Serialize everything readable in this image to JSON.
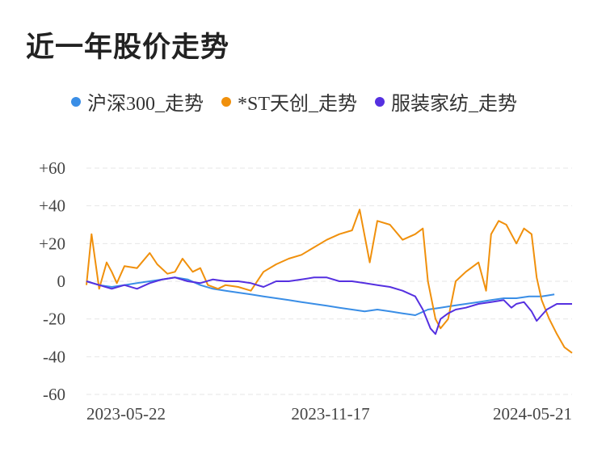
{
  "title": "近一年股价走势",
  "chart_data": {
    "type": "line",
    "title": "近一年股价走势",
    "x_ticks": [
      "2023-05-22",
      "2023-11-17",
      "2024-05-21"
    ],
    "y_ticks": [
      "+60",
      "+40",
      "+20",
      "0",
      "-20",
      "-40",
      "-60"
    ],
    "ylim": [
      -60,
      60
    ],
    "grid": true,
    "legend_position": "top",
    "series": [
      {
        "name": "沪深300_走势",
        "color": "#3a8ee6",
        "points": [
          [
            0,
            0
          ],
          [
            5,
            -2
          ],
          [
            10,
            -3
          ],
          [
            15,
            -2
          ],
          [
            20,
            -1
          ],
          [
            25,
            0
          ],
          [
            30,
            1
          ],
          [
            35,
            2
          ],
          [
            40,
            1
          ],
          [
            45,
            -2
          ],
          [
            50,
            -4
          ],
          [
            55,
            -5
          ],
          [
            60,
            -6
          ],
          [
            65,
            -7
          ],
          [
            70,
            -8
          ],
          [
            75,
            -9
          ],
          [
            80,
            -10
          ],
          [
            85,
            -11
          ],
          [
            90,
            -12
          ],
          [
            95,
            -13
          ],
          [
            100,
            -14
          ],
          [
            105,
            -15
          ],
          [
            110,
            -16
          ],
          [
            115,
            -15
          ],
          [
            120,
            -16
          ],
          [
            125,
            -17
          ],
          [
            130,
            -18
          ],
          [
            135,
            -15
          ],
          [
            140,
            -14
          ],
          [
            145,
            -13
          ],
          [
            150,
            -12
          ],
          [
            155,
            -11
          ],
          [
            160,
            -10
          ],
          [
            165,
            -9
          ],
          [
            170,
            -9
          ],
          [
            175,
            -8
          ],
          [
            180,
            -8
          ],
          [
            185,
            -7
          ]
        ]
      },
      {
        "name": "*ST天创_走势",
        "color": "#f0900c",
        "points": [
          [
            0,
            -2
          ],
          [
            2,
            25
          ],
          [
            5,
            -4
          ],
          [
            8,
            10
          ],
          [
            10,
            5
          ],
          [
            12,
            -1
          ],
          [
            15,
            8
          ],
          [
            20,
            7
          ],
          [
            25,
            15
          ],
          [
            28,
            9
          ],
          [
            32,
            4
          ],
          [
            35,
            5
          ],
          [
            38,
            12
          ],
          [
            42,
            5
          ],
          [
            45,
            7
          ],
          [
            48,
            -2
          ],
          [
            52,
            -4
          ],
          [
            55,
            -2
          ],
          [
            60,
            -3
          ],
          [
            65,
            -5
          ],
          [
            70,
            5
          ],
          [
            75,
            9
          ],
          [
            80,
            12
          ],
          [
            85,
            14
          ],
          [
            90,
            18
          ],
          [
            95,
            22
          ],
          [
            100,
            25
          ],
          [
            105,
            27
          ],
          [
            108,
            38
          ],
          [
            112,
            10
          ],
          [
            115,
            32
          ],
          [
            120,
            30
          ],
          [
            125,
            22
          ],
          [
            130,
            25
          ],
          [
            133,
            28
          ],
          [
            135,
            0
          ],
          [
            138,
            -20
          ],
          [
            140,
            -25
          ],
          [
            143,
            -20
          ],
          [
            146,
            0
          ],
          [
            150,
            5
          ],
          [
            155,
            10
          ],
          [
            158,
            -5
          ],
          [
            160,
            25
          ],
          [
            163,
            32
          ],
          [
            166,
            30
          ],
          [
            170,
            20
          ],
          [
            173,
            28
          ],
          [
            176,
            25
          ],
          [
            178,
            2
          ],
          [
            180,
            -10
          ],
          [
            183,
            -20
          ],
          [
            186,
            -28
          ],
          [
            189,
            -35
          ],
          [
            192,
            -38
          ]
        ]
      },
      {
        "name": "服装家纺_走势",
        "color": "#5530e0",
        "points": [
          [
            0,
            0
          ],
          [
            5,
            -2
          ],
          [
            10,
            -4
          ],
          [
            15,
            -2
          ],
          [
            20,
            -4
          ],
          [
            25,
            -1
          ],
          [
            30,
            1
          ],
          [
            35,
            2
          ],
          [
            40,
            0
          ],
          [
            45,
            -1
          ],
          [
            50,
            1
          ],
          [
            55,
            0
          ],
          [
            60,
            0
          ],
          [
            65,
            -1
          ],
          [
            70,
            -3
          ],
          [
            75,
            0
          ],
          [
            80,
            0
          ],
          [
            85,
            1
          ],
          [
            90,
            2
          ],
          [
            95,
            2
          ],
          [
            100,
            0
          ],
          [
            105,
            0
          ],
          [
            110,
            -1
          ],
          [
            115,
            -2
          ],
          [
            120,
            -3
          ],
          [
            125,
            -5
          ],
          [
            130,
            -8
          ],
          [
            133,
            -15
          ],
          [
            136,
            -25
          ],
          [
            138,
            -28
          ],
          [
            140,
            -20
          ],
          [
            143,
            -17
          ],
          [
            146,
            -15
          ],
          [
            150,
            -14
          ],
          [
            155,
            -12
          ],
          [
            160,
            -11
          ],
          [
            165,
            -10
          ],
          [
            168,
            -14
          ],
          [
            170,
            -12
          ],
          [
            173,
            -11
          ],
          [
            176,
            -16
          ],
          [
            178,
            -21
          ],
          [
            182,
            -15
          ],
          [
            186,
            -12
          ],
          [
            190,
            -12
          ],
          [
            192,
            -12
          ]
        ]
      }
    ],
    "x_range": [
      0,
      192
    ]
  }
}
